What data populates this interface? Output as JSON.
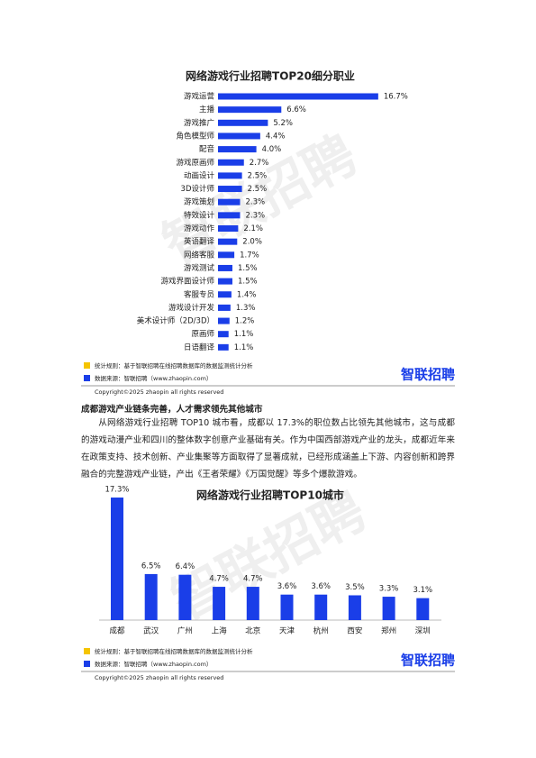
{
  "chart_data": [
    {
      "type": "hbar",
      "title": "网络游戏行业招聘TOP20细分职业",
      "color": "#1a3ee8",
      "categories": [
        "游戏运营",
        "主播",
        "游戏推广",
        "角色模型师",
        "配音",
        "游戏原画师",
        "动画设计",
        "3D设计师",
        "游戏策划",
        "特效设计",
        "游戏动作",
        "英语翻译",
        "网络客服",
        "游戏测试",
        "游戏界面设计师",
        "客服专员",
        "游戏设计开发",
        "美术设计师（2D/3D）",
        "原画师",
        "日语翻译"
      ],
      "values": [
        16.7,
        6.6,
        5.2,
        4.4,
        4.0,
        2.7,
        2.5,
        2.5,
        2.3,
        2.3,
        2.1,
        2.0,
        1.7,
        1.5,
        1.5,
        1.4,
        1.3,
        1.2,
        1.1,
        1.1
      ],
      "value_labels": [
        "16.7%",
        "6.6%",
        "5.2%",
        "4.4%",
        "4.0%",
        "2.7%",
        "2.5%",
        "2.5%",
        "2.3%",
        "2.3%",
        "2.1%",
        "2.0%",
        "1.7%",
        "1.5%",
        "1.5%",
        "1.4%",
        "1.3%",
        "1.2%",
        "1.1%",
        "1.1%"
      ]
    },
    {
      "type": "bar",
      "title": "网络游戏行业招聘TOP10城市",
      "color": "#1a3ee8",
      "categories": [
        "成都",
        "武汉",
        "广州",
        "上海",
        "北京",
        "天津",
        "杭州",
        "西安",
        "郑州",
        "深圳"
      ],
      "values": [
        17.3,
        6.5,
        6.4,
        4.7,
        4.7,
        3.6,
        3.6,
        3.5,
        3.3,
        3.1
      ],
      "value_labels": [
        "17.3%",
        "6.5%",
        "6.4%",
        "4.7%",
        "4.7%",
        "3.6%",
        "3.6%",
        "3.5%",
        "3.3%",
        "3.1%"
      ]
    }
  ],
  "watermark": "智联招聘",
  "footers": [
    {
      "rule": "统计规则：基于智联招聘在线招聘数据库的数据监测统计分析",
      "source": "数据来源：智联招聘（www.zhaopin.com）",
      "copyright": "Copyright©2025 zhaopin all rights reserved",
      "logo": "智联招聘"
    },
    {
      "rule": "统计规则：基于智联招聘在线招聘数据库的数据监测统计分析",
      "source": "数据来源：智联招聘（www.zhaopin.com）",
      "copyright": "Copyright©2025 zhaopin all rights reserved",
      "logo": "智联招聘"
    }
  ],
  "section": {
    "heading": "成都游戏产业链条完善，人才需求领先其他城市",
    "paragraph": "从网络游戏行业招聘 TOP10 城市看，成都以 17.3%的职位数占比领先其他城市，这与成都的游戏动漫产业和四川的整体数字创意产业基础有关。作为中国西部游戏产业的龙头，成都近年来在政策支持、技术创新、产业集聚等方面取得了显著成就，已经形成涵盖上下游、内容创新和跨界融合的完整游戏产业链，产出《王者荣耀》《万国觉醒》等多个爆款游戏。"
  }
}
